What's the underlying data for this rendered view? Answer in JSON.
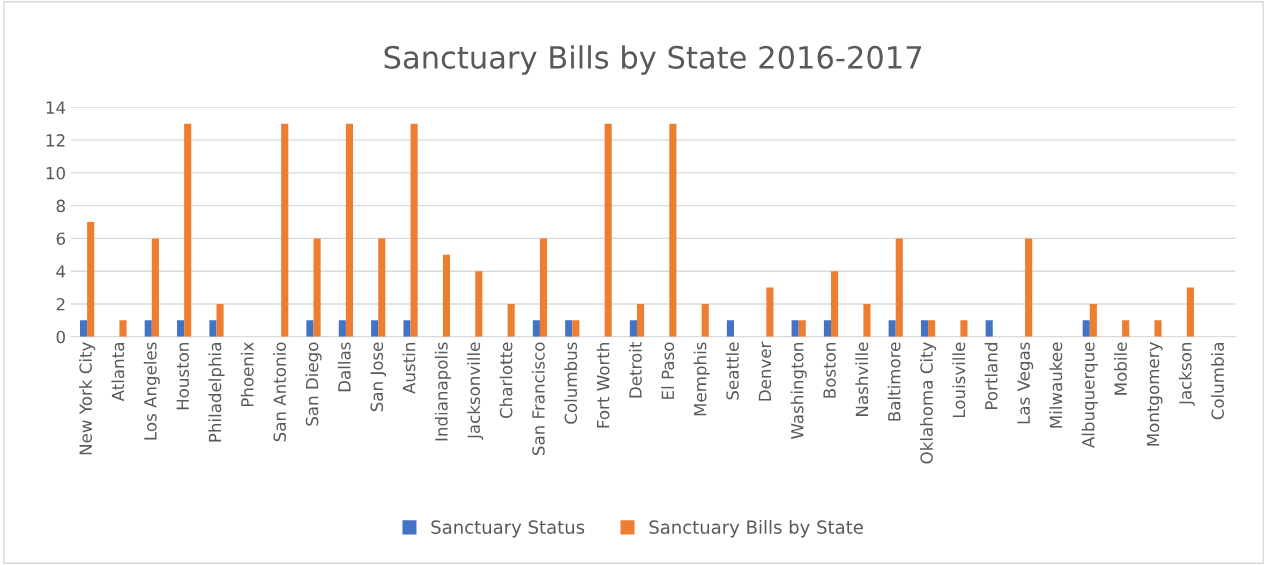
{
  "chart_data": {
    "type": "bar",
    "title": "Sanctuary Bills by State 2016-2017",
    "categories": [
      "New York City",
      "Atlanta",
      "Los Angeles",
      "Houston",
      "Philadelphia",
      "Phoenix",
      "San Antonio",
      "San Diego",
      "Dallas",
      "San Jose",
      "Austin",
      "Indianapolis",
      "Jacksonville",
      "Charlotte",
      "San Francisco",
      "Columbus",
      "Fort Worth",
      "Detroit",
      "El Paso",
      "Memphis",
      "Seattle",
      "Denver",
      "Washington",
      "Boston",
      "Nashville",
      "Baltimore",
      "Oklahoma City",
      "Louisville",
      "Portland",
      "Las Vegas",
      "Milwaukee",
      "Albuquerque",
      "Mobile",
      "Montgomery",
      "Jackson",
      "Columbia"
    ],
    "series": [
      {
        "name": "Sanctuary Status",
        "color": "#4472c4",
        "values": [
          1,
          0,
          1,
          1,
          1,
          0,
          0,
          1,
          1,
          1,
          1,
          0,
          0,
          0,
          1,
          1,
          0,
          1,
          0,
          0,
          1,
          0,
          1,
          1,
          0,
          1,
          1,
          0,
          1,
          0,
          0,
          1,
          0,
          0,
          0,
          0
        ]
      },
      {
        "name": "Sanctuary Bills by State",
        "color": "#ed7d31",
        "values": [
          7,
          1,
          6,
          13,
          2,
          0,
          13,
          6,
          13,
          6,
          13,
          5,
          4,
          2,
          6,
          1,
          13,
          2,
          13,
          2,
          0,
          3,
          1,
          4,
          2,
          6,
          1,
          1,
          0,
          6,
          0,
          2,
          1,
          1,
          3,
          0
        ]
      }
    ],
    "ylim": [
      0,
      14
    ],
    "yticks": [
      0,
      2,
      4,
      6,
      8,
      10,
      12,
      14
    ],
    "grid": "y",
    "legend": "bottom"
  }
}
